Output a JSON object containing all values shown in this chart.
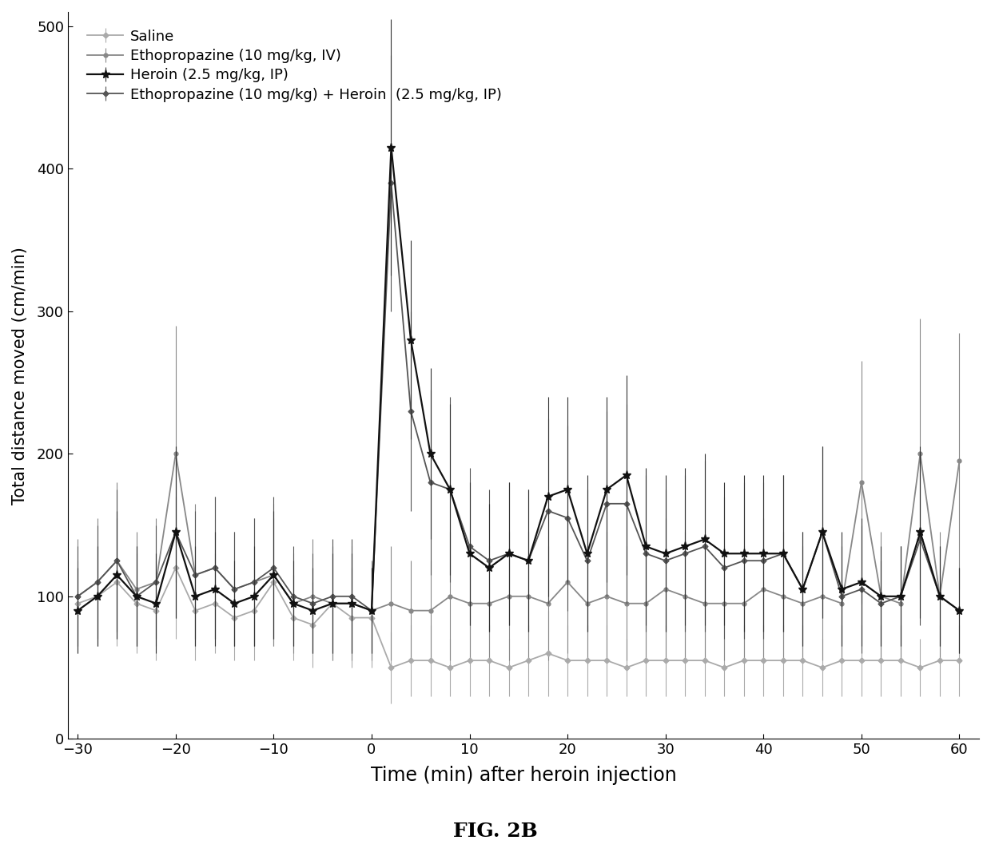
{
  "title": "FIG. 2B",
  "xlabel": "Time (min) after heroin injection",
  "ylabel": "Total distance moved (cm/min)",
  "xlim": [
    -31,
    62
  ],
  "ylim": [
    0,
    510
  ],
  "xticks": [
    -30,
    -20,
    -10,
    0,
    10,
    20,
    30,
    40,
    50,
    60
  ],
  "yticks": [
    0,
    100,
    200,
    300,
    400,
    500
  ],
  "legend_labels": [
    "Saline",
    "Ethopropazine (10 mg/kg, IV)",
    "Heroin (2.5 mg/kg, IP)",
    "Ethopropazine (10 mg/kg) + Heroin  (2.5 mg/kg, IP)"
  ],
  "saline_x": [
    -30,
    -28,
    -26,
    -24,
    -22,
    -20,
    -18,
    -16,
    -14,
    -12,
    -10,
    -8,
    -6,
    -4,
    -2,
    0,
    2,
    4,
    6,
    8,
    10,
    12,
    14,
    16,
    18,
    20,
    22,
    24,
    26,
    28,
    30,
    32,
    34,
    36,
    38,
    40,
    42,
    44,
    46,
    48,
    50,
    52,
    54,
    56,
    58,
    60
  ],
  "saline_y": [
    95,
    100,
    110,
    95,
    90,
    120,
    90,
    95,
    85,
    90,
    110,
    85,
    80,
    95,
    85,
    85,
    50,
    55,
    55,
    50,
    55,
    55,
    50,
    55,
    60,
    55,
    55,
    55,
    50,
    55,
    55,
    55,
    55,
    50,
    55,
    55,
    55,
    55,
    50,
    55,
    55,
    55,
    55,
    50,
    55,
    55
  ],
  "saline_err": [
    30,
    35,
    45,
    35,
    35,
    50,
    35,
    35,
    30,
    35,
    45,
    30,
    30,
    40,
    35,
    35,
    25,
    25,
    25,
    20,
    25,
    25,
    20,
    25,
    30,
    25,
    25,
    25,
    20,
    25,
    25,
    25,
    25,
    20,
    25,
    25,
    25,
    25,
    20,
    25,
    25,
    25,
    25,
    20,
    25,
    25
  ],
  "ethopro_x": [
    -30,
    -28,
    -26,
    -24,
    -22,
    -20,
    -18,
    -16,
    -14,
    -12,
    -10,
    -8,
    -6,
    -4,
    -2,
    0,
    2,
    4,
    6,
    8,
    10,
    12,
    14,
    16,
    18,
    20,
    22,
    24,
    26,
    28,
    30,
    32,
    34,
    36,
    38,
    40,
    42,
    44,
    46,
    48,
    50,
    52,
    54,
    56,
    58,
    60
  ],
  "ethopro_y": [
    100,
    110,
    125,
    105,
    110,
    200,
    115,
    120,
    105,
    110,
    115,
    95,
    100,
    95,
    95,
    90,
    95,
    90,
    90,
    100,
    95,
    95,
    100,
    100,
    95,
    110,
    95,
    100,
    95,
    95,
    105,
    100,
    95,
    95,
    95,
    105,
    100,
    95,
    100,
    95,
    180,
    100,
    95,
    200,
    100,
    195
  ],
  "ethopro_err": [
    40,
    45,
    55,
    40,
    45,
    90,
    50,
    50,
    40,
    45,
    50,
    35,
    40,
    40,
    40,
    35,
    40,
    35,
    35,
    45,
    40,
    40,
    45,
    45,
    40,
    50,
    40,
    45,
    40,
    40,
    50,
    45,
    40,
    40,
    40,
    50,
    45,
    40,
    45,
    40,
    85,
    45,
    40,
    95,
    45,
    90
  ],
  "heroin_x": [
    -30,
    -28,
    -26,
    -24,
    -22,
    -20,
    -18,
    -16,
    -14,
    -12,
    -10,
    -8,
    -6,
    -4,
    -2,
    0,
    2,
    4,
    6,
    8,
    10,
    12,
    14,
    16,
    18,
    20,
    22,
    24,
    26,
    28,
    30,
    32,
    34,
    36,
    38,
    40,
    42,
    44,
    46,
    48,
    50,
    52,
    54,
    56,
    58,
    60
  ],
  "heroin_y": [
    90,
    100,
    115,
    100,
    95,
    145,
    100,
    105,
    95,
    100,
    115,
    95,
    90,
    95,
    95,
    90,
    415,
    280,
    200,
    175,
    130,
    120,
    130,
    125,
    170,
    175,
    130,
    175,
    185,
    135,
    130,
    135,
    140,
    130,
    130,
    130,
    130,
    105,
    145,
    105,
    110,
    100,
    100,
    145,
    100,
    90
  ],
  "heroin_err": [
    30,
    35,
    45,
    35,
    35,
    60,
    35,
    40,
    30,
    35,
    45,
    30,
    30,
    35,
    35,
    30,
    90,
    70,
    60,
    60,
    50,
    45,
    50,
    50,
    70,
    65,
    55,
    65,
    70,
    55,
    55,
    55,
    60,
    50,
    55,
    55,
    55,
    40,
    60,
    40,
    45,
    35,
    35,
    60,
    35,
    30
  ],
  "combo_x": [
    -30,
    -28,
    -26,
    -24,
    -22,
    -20,
    -18,
    -16,
    -14,
    -12,
    -10,
    -8,
    -6,
    -4,
    -2,
    0,
    2,
    4,
    6,
    8,
    10,
    12,
    14,
    16,
    18,
    20,
    22,
    24,
    26,
    28,
    30,
    32,
    34,
    36,
    38,
    40,
    42,
    44,
    46,
    48,
    50,
    52,
    54,
    56,
    58,
    60
  ],
  "combo_y": [
    100,
    110,
    125,
    100,
    110,
    145,
    115,
    120,
    105,
    110,
    120,
    100,
    95,
    100,
    100,
    90,
    390,
    230,
    180,
    175,
    135,
    125,
    130,
    125,
    160,
    155,
    125,
    165,
    165,
    130,
    125,
    130,
    135,
    120,
    125,
    125,
    130,
    105,
    145,
    100,
    105,
    95,
    100,
    140,
    100,
    90
  ],
  "combo_err": [
    35,
    40,
    50,
    35,
    40,
    60,
    45,
    50,
    40,
    45,
    50,
    35,
    35,
    40,
    40,
    30,
    90,
    70,
    65,
    65,
    55,
    50,
    50,
    50,
    65,
    65,
    50,
    65,
    70,
    55,
    50,
    55,
    60,
    50,
    55,
    55,
    55,
    40,
    60,
    35,
    45,
    30,
    35,
    60,
    35,
    30
  ]
}
